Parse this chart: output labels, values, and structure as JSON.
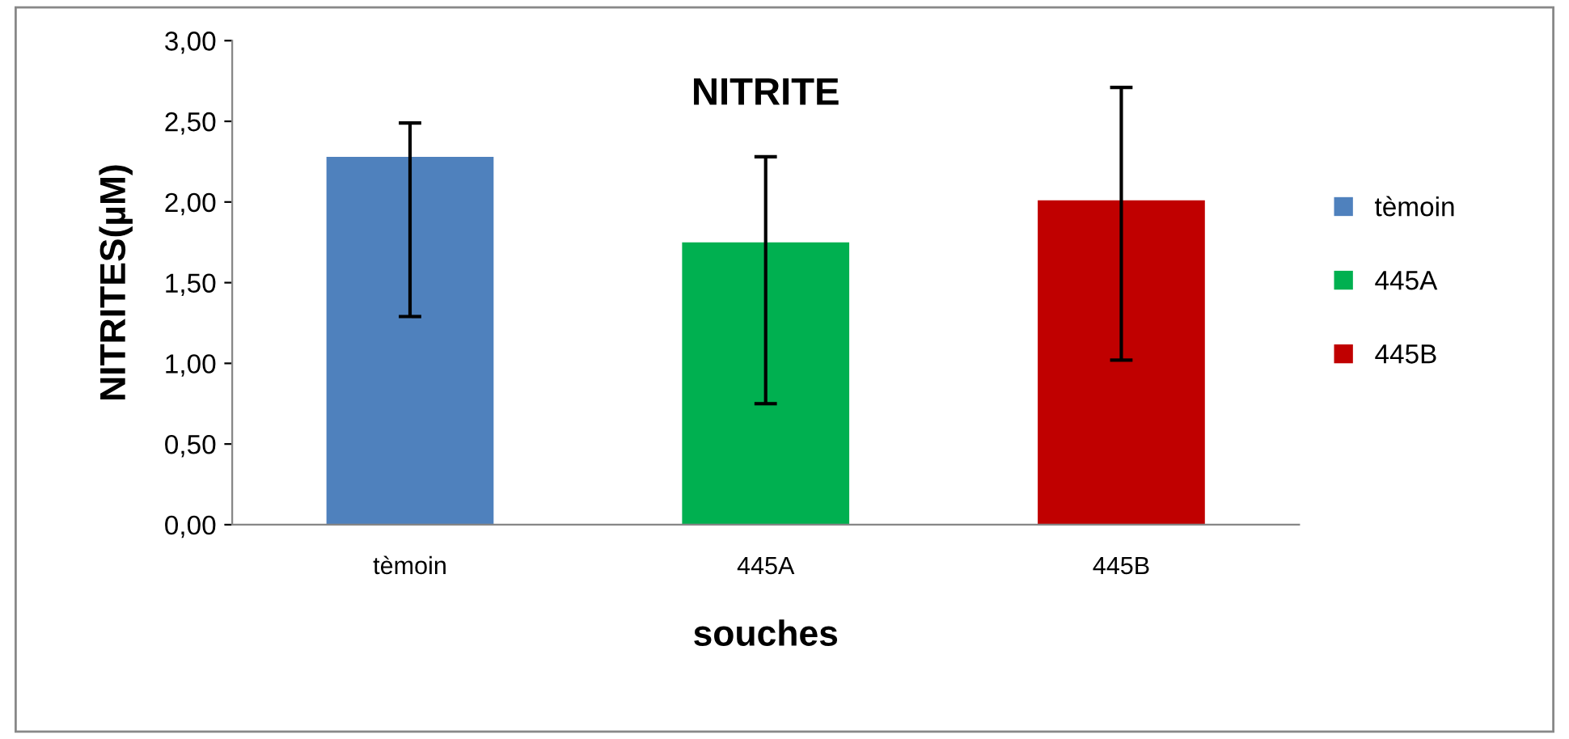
{
  "chart_data": {
    "type": "bar",
    "title": "NITRITE",
    "xlabel": "souches",
    "ylabel": "NITRITES(µM)",
    "categories": [
      "tèmoin",
      "445A",
      "445B"
    ],
    "series": [
      {
        "name": "tèmoin",
        "color": "#4f81bd",
        "values": [
          2.28,
          null,
          null
        ],
        "errors": [
          [
            1.29,
            2.49
          ],
          null,
          null
        ]
      },
      {
        "name": "445A",
        "color": "#00b050",
        "values": [
          null,
          1.75,
          null
        ],
        "errors": [
          null,
          [
            0.75,
            2.28
          ],
          null
        ]
      },
      {
        "name": "445B",
        "color": "#c00000",
        "values": [
          null,
          null,
          2.01
        ],
        "errors": [
          null,
          null,
          [
            1.02,
            2.71
          ]
        ]
      }
    ],
    "ylim": [
      0,
      3
    ],
    "yticks": [
      {
        "value": 0,
        "label": "0,00"
      },
      {
        "value": 0.5,
        "label": "0,50"
      },
      {
        "value": 1,
        "label": "1,00"
      },
      {
        "value": 1.5,
        "label": "1,50"
      },
      {
        "value": 2,
        "label": "2,00"
      },
      {
        "value": 2.5,
        "label": "2,50"
      },
      {
        "value": 3,
        "label": "3,00"
      }
    ],
    "legend": "right"
  }
}
